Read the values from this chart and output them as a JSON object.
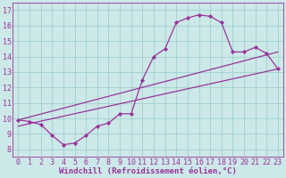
{
  "xlabel": "Windchill (Refroidissement éolien,°C)",
  "bg_color": "#cce8e8",
  "line_color": "#993399",
  "xlim": [
    -0.5,
    23.5
  ],
  "ylim": [
    7.5,
    17.5
  ],
  "xticks": [
    0,
    1,
    2,
    3,
    4,
    5,
    6,
    7,
    8,
    9,
    10,
    11,
    12,
    13,
    14,
    15,
    16,
    17,
    18,
    19,
    20,
    21,
    22,
    23
  ],
  "yticks": [
    8,
    9,
    10,
    11,
    12,
    13,
    14,
    15,
    16,
    17
  ],
  "grid_color": "#99cccc",
  "series1_x": [
    0,
    1,
    2,
    3,
    4,
    5,
    6,
    7,
    8,
    9,
    10,
    11,
    12,
    13,
    14,
    15,
    16,
    17,
    18,
    19,
    20,
    21,
    22,
    23
  ],
  "series1_y": [
    9.9,
    9.8,
    9.6,
    8.9,
    8.3,
    8.4,
    8.9,
    9.5,
    9.7,
    10.3,
    10.3,
    12.5,
    14.0,
    14.5,
    16.2,
    16.5,
    16.7,
    16.6,
    16.2,
    14.3,
    14.3,
    14.6,
    14.2,
    13.2
  ],
  "series2_x": [
    0,
    23
  ],
  "series2_y": [
    9.9,
    14.3
  ],
  "series3_x": [
    0,
    23
  ],
  "series3_y": [
    9.5,
    13.2
  ],
  "xlabel_fontsize": 6.5,
  "tick_fontsize": 6
}
